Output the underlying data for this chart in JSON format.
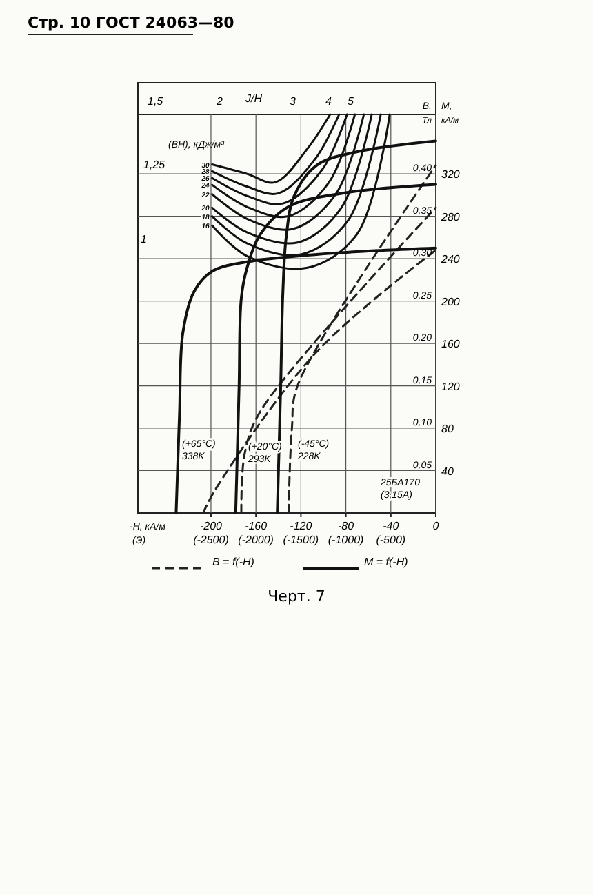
{
  "chart_data": {
    "type": "line",
    "xlabel": "-H, кА/м",
    "x2label": "(Э)",
    "ylabel": "B, Тл",
    "y2label": "M, кА/м",
    "xlim": [
      -265,
      0
    ],
    "x2lim": [
      -3312.5,
      0
    ],
    "ylim": [
      0,
      0.47
    ],
    "y2lim": [
      0,
      376
    ],
    "xticks": [
      -200,
      -160,
      -120,
      -80,
      -40,
      0
    ],
    "x2ticks": [
      {
        "value": -2500,
        "label": "(-2500)"
      },
      {
        "value": -2000,
        "label": "(-2000)"
      },
      {
        "value": -1500,
        "label": "(-1500)"
      },
      {
        "value": -1000,
        "label": "(-1000)"
      },
      {
        "value": -500,
        "label": "(-500)"
      }
    ],
    "yticks": [
      {
        "value": 0.05,
        "label": "0,05"
      },
      {
        "value": 0.1,
        "label": "0,10"
      },
      {
        "value": 0.15,
        "label": "0,15"
      },
      {
        "value": 0.2,
        "label": "0,20"
      },
      {
        "value": 0.25,
        "label": "0,25"
      },
      {
        "value": 0.3,
        "label": "0,30"
      },
      {
        "value": 0.35,
        "label": "0,35"
      },
      {
        "value": 0.4,
        "label": "0,40"
      }
    ],
    "y2ticks": [
      40,
      80,
      120,
      160,
      200,
      240,
      280,
      320
    ],
    "grid": true,
    "legend": "bottom",
    "series": [
      {
        "name": "B = f(-H)",
        "line_style": "dashed",
        "color": "#222222",
        "x": [
          -207,
          -195,
          -106,
          0
        ],
        "values": [
          0,
          0.03,
          0.19,
          0.31
        ]
      },
      {
        "line_style": "dashed",
        "color": "#222222",
        "x": [
          -173,
          -170,
          -156,
          0
        ],
        "values": [
          0,
          0.07,
          0.12,
          0.36
        ]
      },
      {
        "line_style": "dashed",
        "color": "#222222",
        "x": [
          -131,
          -128,
          -123,
          0
        ],
        "values": [
          0,
          0.1,
          0.15,
          0.41
        ]
      },
      {
        "name": "M = f(-H)",
        "axis": "y2",
        "color": "#111111",
        "x": [
          -231,
          -228,
          -225,
          -215,
          -199,
          -168,
          -106,
          -44,
          0
        ],
        "values": [
          0,
          93,
          170,
          209,
          228,
          237,
          244,
          248,
          250
        ]
      },
      {
        "axis": "y2",
        "color": "#111111",
        "x": [
          -178,
          -175,
          -173,
          -168,
          -156,
          -131,
          -81,
          0
        ],
        "values": [
          0,
          119,
          203,
          231,
          263,
          289,
          302,
          310
        ]
      },
      {
        "axis": "y2",
        "color": "#111111",
        "x": [
          -141,
          -138,
          -136,
          -133,
          -126,
          -106,
          -69,
          0
        ],
        "values": [
          0,
          119,
          209,
          261,
          299,
          328,
          341,
          351
        ]
      },
      {
        "name": "30",
        "color": "#111111",
        "x": [
          -199,
          -168,
          -143,
          -114,
          -94
        ],
        "values": [
          0.411,
          0.4,
          0.39,
          0.43,
          0.47
        ]
      },
      {
        "name": "28",
        "color": "#111111",
        "x": [
          -199,
          -168,
          -140,
          -107,
          -86
        ],
        "values": [
          0.403,
          0.385,
          0.377,
          0.418,
          0.47
        ]
      },
      {
        "name": "26",
        "color": "#111111",
        "x": [
          -199,
          -168,
          -136,
          -101,
          -79
        ],
        "values": [
          0.395,
          0.374,
          0.365,
          0.405,
          0.47
        ]
      },
      {
        "name": "24",
        "color": "#111111",
        "x": [
          -199,
          -168,
          -131,
          -95,
          -72
        ],
        "values": [
          0.387,
          0.361,
          0.35,
          0.39,
          0.47
        ]
      },
      {
        "name": "22",
        "color": "#111111",
        "x": [
          -199,
          -168,
          -127,
          -89,
          -64
        ],
        "values": [
          0.376,
          0.347,
          0.335,
          0.376,
          0.47
        ]
      },
      {
        "name": "20",
        "color": "#111111",
        "x": [
          -199,
          -168,
          -123,
          -84,
          -57
        ],
        "values": [
          0.36,
          0.331,
          0.319,
          0.36,
          0.47
        ]
      },
      {
        "name": "18",
        "color": "#111111",
        "x": [
          -199,
          -168,
          -120,
          -78,
          -49
        ],
        "values": [
          0.35,
          0.318,
          0.305,
          0.345,
          0.47
        ]
      },
      {
        "name": "16",
        "color": "#111111",
        "x": [
          -199,
          -168,
          -115,
          -70,
          -41
        ],
        "values": [
          0.339,
          0.303,
          0.289,
          0.329,
          0.47
        ]
      }
    ],
    "annotations": [
      "Стр. 10 ГОСТ 24063—80",
      "Черт. 7",
      "(BH), кДж/м³",
      "1,5",
      "2",
      "J/H",
      "3",
      "4",
      "5",
      "1,25",
      "1",
      "(+65°C) 338K",
      "(+20°C) 293K",
      "(-45°C) 228K",
      "25БА170 (3,15А)"
    ]
  }
}
